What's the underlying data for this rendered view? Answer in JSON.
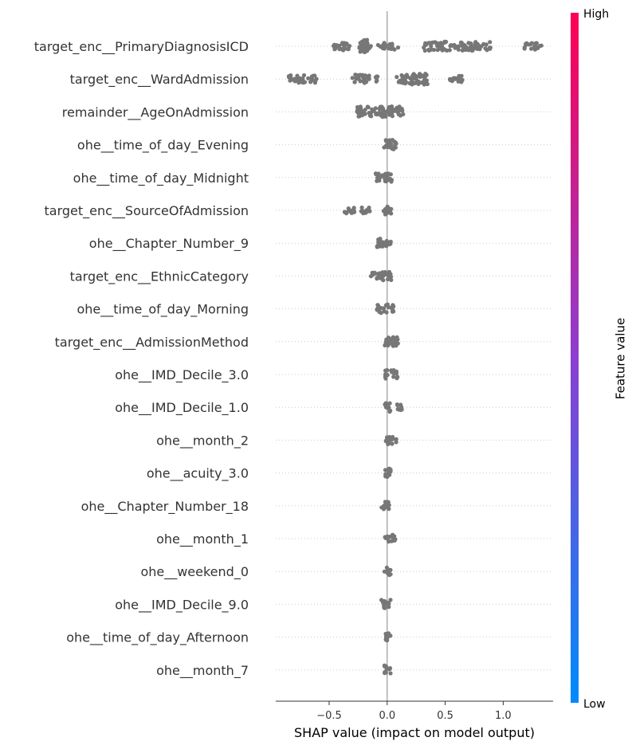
{
  "chart_data": {
    "type": "scatter",
    "subtype": "shap-beeswarm-summary",
    "xlabel": "SHAP value (impact on model output)",
    "x_ticks": [
      "−0.5",
      "0.0",
      "0.5",
      "1.0"
    ],
    "x_tick_values": [
      -0.5,
      0.0,
      0.5,
      1.0
    ],
    "xlim": [
      -0.96,
      1.43
    ],
    "zero_line": true,
    "point_color": "#777777",
    "colorbar": {
      "title": "Feature value",
      "high_label": "High",
      "low_label": "Low",
      "high_color": "#ff0052",
      "mid_color": "#8c3fd0",
      "low_color": "#008bfb"
    },
    "features": [
      {
        "name": "target_enc__PrimaryDiagnosisICD",
        "clusters": [
          [
            -0.48,
            -0.32,
            0.5
          ],
          [
            -0.24,
            -0.14,
            1
          ],
          [
            -0.08,
            0.1,
            0.35
          ],
          [
            0.3,
            0.9,
            0.6
          ],
          [
            1.18,
            1.33,
            0.4
          ]
        ]
      },
      {
        "name": "target_enc__WardAdmission",
        "clusters": [
          [
            -0.85,
            -0.6,
            0.5
          ],
          [
            -0.3,
            -0.15,
            0.6
          ],
          [
            -0.1,
            -0.08,
            0.2
          ],
          [
            0.08,
            0.35,
            0.8
          ],
          [
            0.53,
            0.65,
            0.4
          ]
        ]
      },
      {
        "name": "remainder__AgeOnAdmission",
        "clusters": [
          [
            -0.26,
            0.15,
            0.8
          ]
        ]
      },
      {
        "name": "ohe__time_of_day_Evening",
        "clusters": [
          [
            -0.03,
            0.08,
            0.7
          ]
        ]
      },
      {
        "name": "ohe__time_of_day_Midnight",
        "clusters": [
          [
            -0.1,
            0.04,
            0.6
          ]
        ]
      },
      {
        "name": "target_enc__SourceOfAdmission",
        "clusters": [
          [
            -0.37,
            -0.28,
            0.3
          ],
          [
            -0.23,
            -0.12,
            0.3
          ],
          [
            -0.03,
            0.04,
            0.6
          ]
        ]
      },
      {
        "name": "ohe__Chapter_Number_9",
        "clusters": [
          [
            -0.09,
            0.04,
            0.6
          ]
        ]
      },
      {
        "name": "target_enc__EthnicCategory",
        "clusters": [
          [
            -0.14,
            0.04,
            0.6
          ]
        ]
      },
      {
        "name": "ohe__time_of_day_Morning",
        "clusters": [
          [
            -0.09,
            0.06,
            0.6
          ]
        ]
      },
      {
        "name": "target_enc__AdmissionMethod",
        "clusters": [
          [
            -0.03,
            0.1,
            0.6
          ]
        ]
      },
      {
        "name": "ohe__IMD_Decile_3.0",
        "clusters": [
          [
            -0.02,
            0.1,
            0.6
          ]
        ]
      },
      {
        "name": "ohe__IMD_Decile_1.0",
        "clusters": [
          [
            -0.02,
            0.03,
            0.6
          ],
          [
            0.08,
            0.13,
            0.3
          ]
        ]
      },
      {
        "name": "ohe__month_2",
        "clusters": [
          [
            -0.02,
            0.08,
            0.5
          ]
        ]
      },
      {
        "name": "ohe__acuity_3.0",
        "clusters": [
          [
            -0.02,
            0.03,
            0.7
          ]
        ]
      },
      {
        "name": "ohe__Chapter_Number_18",
        "clusters": [
          [
            -0.06,
            0.03,
            0.5
          ]
        ]
      },
      {
        "name": "ohe__month_1",
        "clusters": [
          [
            -0.02,
            0.07,
            0.5
          ]
        ]
      },
      {
        "name": "ohe__weekend_0",
        "clusters": [
          [
            -0.03,
            0.03,
            0.6
          ]
        ]
      },
      {
        "name": "ohe__IMD_Decile_9.0",
        "clusters": [
          [
            -0.05,
            0.03,
            0.6
          ]
        ]
      },
      {
        "name": "ohe__time_of_day_Afternoon",
        "clusters": [
          [
            -0.02,
            0.03,
            0.6
          ]
        ]
      },
      {
        "name": "ohe__month_7",
        "clusters": [
          [
            -0.03,
            0.03,
            0.6
          ]
        ]
      }
    ]
  }
}
